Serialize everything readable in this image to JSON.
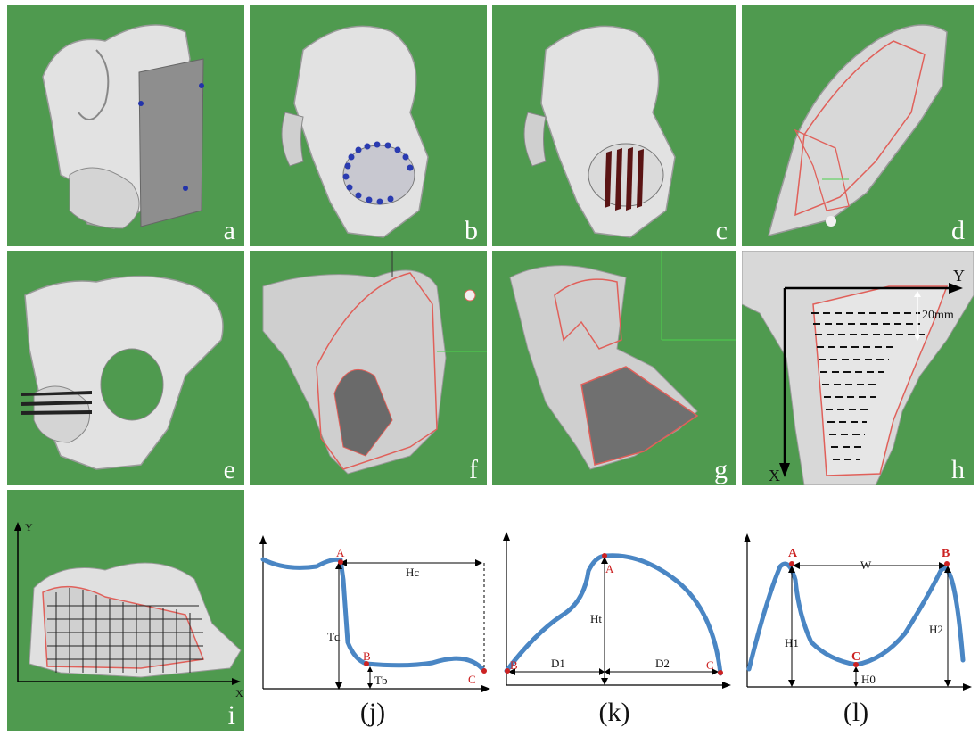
{
  "panels": {
    "a": "a",
    "b": "b",
    "c": "c",
    "d": "d",
    "e": "e",
    "f": "f",
    "g": "g",
    "h": "h",
    "i": "i"
  },
  "panel_h": {
    "axis_y": "Y",
    "axis_x": "X",
    "scale_label": "20mm"
  },
  "panel_i": {
    "axis_y": "Y",
    "axis_x": "X"
  },
  "graph_j": {
    "label": "(j)",
    "points": {
      "A": "A",
      "B": "B",
      "C": "C"
    },
    "measures": {
      "Hc": "Hc",
      "Td": "Td",
      "Tb": "Tb"
    }
  },
  "graph_k": {
    "label": "(k)",
    "points": {
      "A": "A",
      "B": "B",
      "C": "C"
    },
    "measures": {
      "Ht": "Ht",
      "D1": "D1",
      "D2": "D2"
    }
  },
  "graph_l": {
    "label": "(l)",
    "points": {
      "A": "A",
      "B": "B",
      "C": "C"
    },
    "measures": {
      "W": "W",
      "H1": "H1",
      "H2": "H2",
      "H0": "H0"
    }
  },
  "colors": {
    "background": "#4f9a4f",
    "bone": "#e2e2e2",
    "contour": "#e0605a",
    "curve": "#4a86c4",
    "point": "#cc2222"
  }
}
